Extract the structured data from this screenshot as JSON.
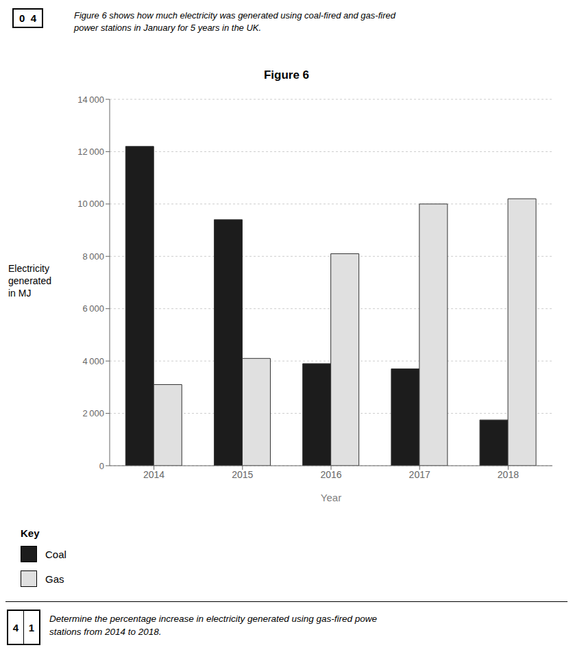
{
  "chart_data": {
    "type": "bar",
    "title": "Figure 6",
    "xlabel": "Year",
    "ylabel": "Electricity\ngenerated\nin MJ",
    "categories": [
      "2014",
      "2015",
      "2016",
      "2017",
      "2018"
    ],
    "series": [
      {
        "name": "Coal",
        "color": "#1c1c1c",
        "values": [
          12200,
          9400,
          3900,
          3700,
          1750
        ]
      },
      {
        "name": "Gas",
        "color": "#e0e0e0",
        "values": [
          3100,
          4100,
          8100,
          10000,
          10200
        ]
      }
    ],
    "ylim": [
      0,
      14000
    ],
    "yticks": [
      0,
      {
        "value": 2000,
        "label": "2 000"
      },
      {
        "value": 4000,
        "label": "4 000"
      },
      {
        "value": 6000,
        "label": "6 000"
      },
      {
        "value": 8000,
        "label": "8 000"
      },
      {
        "value": 10000,
        "label": "10 000"
      },
      {
        "value": 12000,
        "label": "12 000"
      },
      {
        "value": 14000,
        "label": "14 000"
      }
    ],
    "grid": true,
    "legend": "lower left",
    "annotations": [
      "0  4",
      "Figure 6 shows how much electricity was generated using coal-fired and gas-fired\npower stations in January for 5 years in the UK.",
      "Key",
      "4",
      "1",
      "Determine the percentage increase in electricity generated using gas-fired powe\nstations from 2014 to 2018."
    ]
  }
}
